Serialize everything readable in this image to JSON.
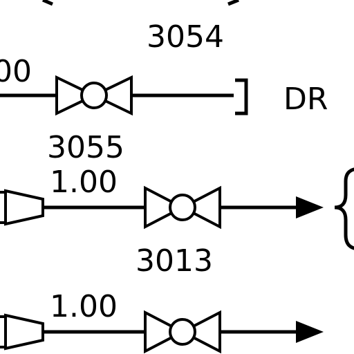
{
  "labels": {
    "valve_3054": "3054",
    "line_top_size": "00",
    "drain": "DR",
    "valve_3055": "3055",
    "line_mid_size": "1.00",
    "valve_3013": "3013",
    "line_bottom_size": "1.00"
  }
}
